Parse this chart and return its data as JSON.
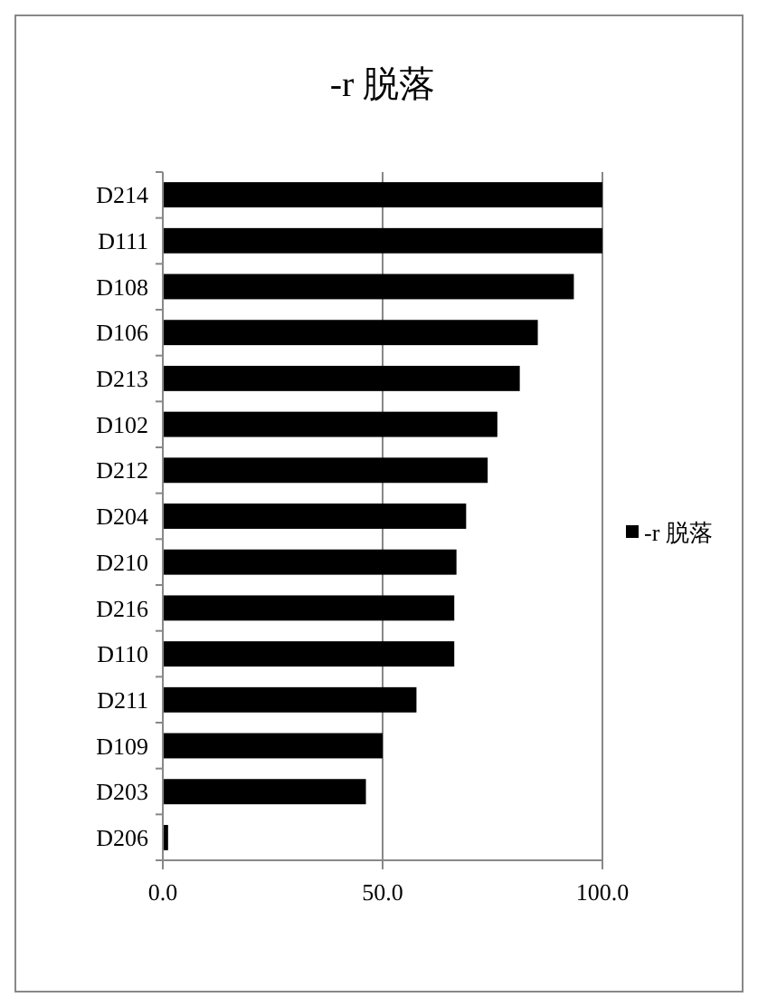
{
  "chart_data": {
    "type": "bar",
    "orientation": "horizontal",
    "title": "-r 脱落",
    "categories": [
      "D214",
      "D111",
      "D108",
      "D106",
      "D213",
      "D102",
      "D212",
      "D204",
      "D210",
      "D216",
      "D110",
      "D211",
      "D109",
      "D203",
      "D206"
    ],
    "series": [
      {
        "name": "-r 脱落",
        "color": "#000000",
        "values": [
          100,
          100,
          93.5,
          85.3,
          81.2,
          76.1,
          73.9,
          69.0,
          66.8,
          66.3,
          66.3,
          57.7,
          50.0,
          46.2,
          1.2
        ]
      }
    ],
    "xlim": [
      0,
      100
    ],
    "xticks": [
      {
        "value": 0,
        "label": "0.0"
      },
      {
        "value": 50,
        "label": "50.0"
      },
      {
        "value": 100,
        "label": "100.0"
      }
    ],
    "grid": "x",
    "legend": "right"
  }
}
